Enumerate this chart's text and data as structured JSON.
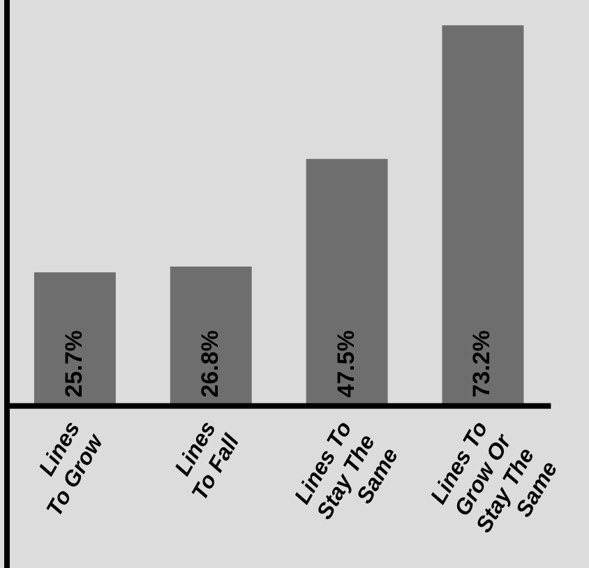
{
  "chart_data": {
    "type": "bar",
    "categories": [
      "Lines To Grow",
      "Lines To Fall",
      "Lines To Stay The Same",
      "Lines To Grow Or Stay The Same"
    ],
    "values": [
      25.7,
      26.8,
      47.5,
      73.2
    ],
    "value_labels": [
      "25.7%",
      "26.8%",
      "47.5%",
      "73.2%"
    ],
    "color": "#6e6e6e",
    "grid": false,
    "legend": false
  }
}
